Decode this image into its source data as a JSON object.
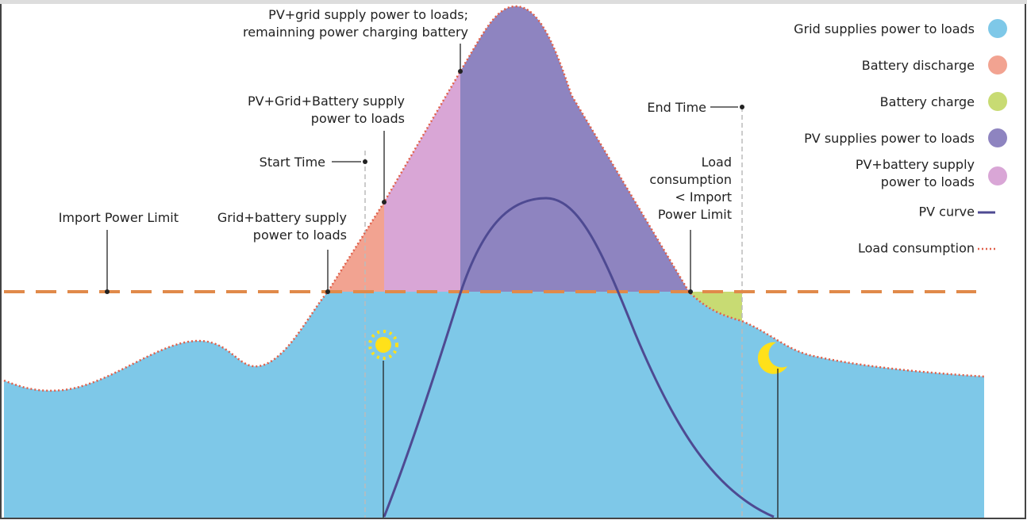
{
  "labels": {
    "pv_grid_charge": [
      "PV+grid supply power to loads;",
      "remainning power charging battery"
    ],
    "pv_grid_battery": [
      "PV+Grid+Battery supply",
      "power to loads"
    ],
    "start_time": "Start Time",
    "import_limit": "Import Power Limit",
    "grid_battery": [
      "Grid+battery supply",
      "power to loads"
    ],
    "end_time": "End Time",
    "load_below": [
      "Load",
      "consumption",
      "< Import",
      "Power Limit"
    ]
  },
  "legend": [
    {
      "label": [
        "Grid supplies power to loads"
      ],
      "color": "#7ec8e8"
    },
    {
      "label": [
        "Battery discharge"
      ],
      "color": "#f2a391"
    },
    {
      "label": [
        "Battery charge"
      ],
      "color": "#c8db73"
    },
    {
      "label": [
        "PV supplies power to loads"
      ],
      "color": "#8e84c0"
    },
    {
      "label": [
        "PV+battery supply",
        "power to loads"
      ],
      "color": "#d9a6d6"
    }
  ],
  "pv_curve": "PV curve",
  "load_consumption": "Load consumption"
}
